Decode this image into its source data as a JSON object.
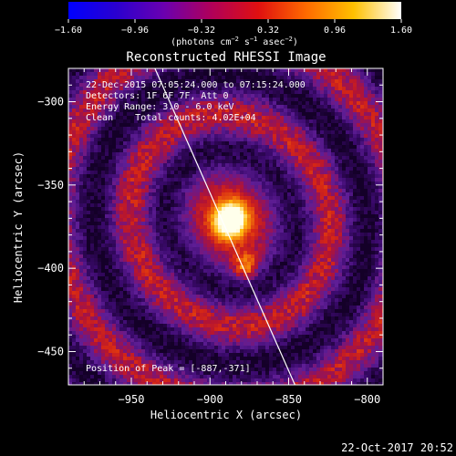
{
  "colorbar": {
    "ticks": [
      "−1.60",
      "−0.96",
      "−0.32",
      "0.32",
      "0.96",
      "1.60"
    ],
    "unit_parts": [
      "(photons cm",
      "−2",
      " s",
      "−1",
      " asec",
      "−2",
      ")"
    ],
    "stops": [
      "#0000ff",
      "#2a00d0",
      "#6a00b0",
      "#b0005a",
      "#e01010",
      "#ff6a00",
      "#ffc000",
      "#ffffff"
    ]
  },
  "title": "Reconstructed RHESSI Image",
  "annotations": {
    "time_range": "22-Dec-2015 07:05:24.000 to 07:15:24.000",
    "detectors": "Detectors: 1F 6F 7F, Att 0",
    "energy": "Energy Range: 3.0 - 6.0 keV",
    "method_counts": "Clean    Total counts: 4.02E+04",
    "peak": "Position of Peak = [-887,-371]"
  },
  "footer": {
    "timestamp": "22-Oct-2017 20:52"
  },
  "chart_data": {
    "type": "heatmap",
    "title": "Reconstructed RHESSI Image",
    "xlabel": "Heliocentric X (arcsec)",
    "ylabel": "Heliocentric Y (arcsec)",
    "xlim": [
      -990,
      -790
    ],
    "ylim": [
      -470,
      -280
    ],
    "x_ticks": [
      -950,
      -900,
      -850,
      -800
    ],
    "y_ticks": [
      -300,
      -350,
      -400,
      -450
    ],
    "x_tick_labels": [
      "−950",
      "−900",
      "−850",
      "−800"
    ],
    "y_tick_labels": [
      "−300",
      "−350",
      "−400",
      "−450"
    ],
    "peak": {
      "x": -887,
      "y": -371
    },
    "secondary_blob": {
      "x": -877,
      "y": -400
    },
    "limb_line": [
      [
        -935,
        -280
      ],
      [
        -846,
        -470
      ]
    ],
    "colorbar_range": [
      -1.6,
      1.6
    ]
  }
}
